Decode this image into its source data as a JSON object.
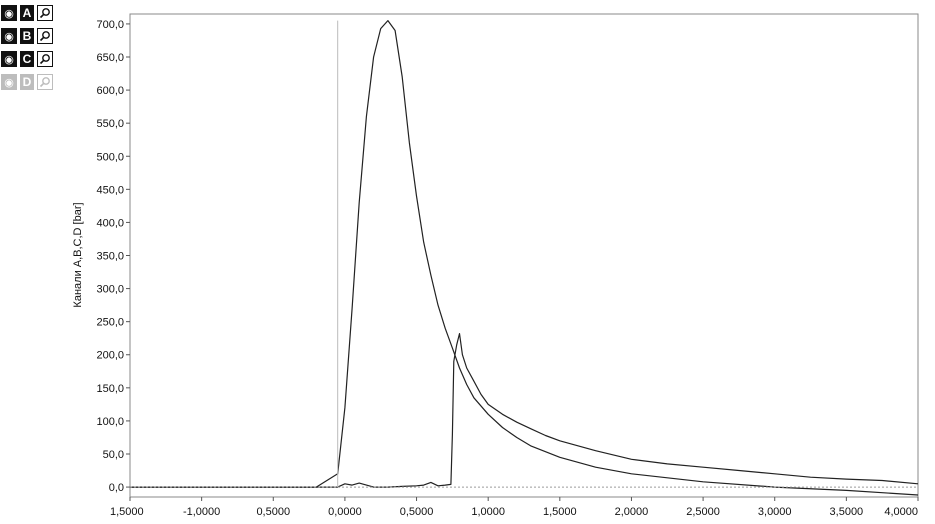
{
  "channels": [
    {
      "letter": "A",
      "icon": "eye-icon",
      "zoom_icon": "magnifier-icon",
      "active": true
    },
    {
      "letter": "B",
      "icon": "eye-icon",
      "zoom_icon": "magnifier-icon",
      "active": true
    },
    {
      "letter": "C",
      "icon": "eye-icon",
      "zoom_icon": "magnifier-icon",
      "active": true
    },
    {
      "letter": "D",
      "icon": "eye-icon",
      "zoom_icon": "magnifier-icon",
      "active": false
    }
  ],
  "chart_data": {
    "type": "line",
    "title": "",
    "xlabel": "",
    "ylabel": "Канали A,B,C,D [bar]",
    "xlim": [
      -1.5,
      4.0
    ],
    "ylim": [
      -15,
      715
    ],
    "x_ticks": [
      {
        "value": -1.5,
        "label": "1,5000"
      },
      {
        "value": -1.0,
        "label": "-1,0000"
      },
      {
        "value": -0.5,
        "label": "0,5000"
      },
      {
        "value": 0.0,
        "label": "0,0000"
      },
      {
        "value": 0.5,
        "label": "0,5000"
      },
      {
        "value": 1.0,
        "label": "1,0000"
      },
      {
        "value": 1.5,
        "label": "1,5000"
      },
      {
        "value": 2.0,
        "label": "2,0000"
      },
      {
        "value": 2.5,
        "label": "2,5000"
      },
      {
        "value": 3.0,
        "label": "3,0000"
      },
      {
        "value": 3.5,
        "label": "3,5000"
      },
      {
        "value": 4.0,
        "label": "4,0000"
      }
    ],
    "y_ticks": [
      {
        "value": 0,
        "label": "0,0"
      },
      {
        "value": 50,
        "label": "50,0"
      },
      {
        "value": 100,
        "label": "100,0"
      },
      {
        "value": 150,
        "label": "150,0"
      },
      {
        "value": 200,
        "label": "200,0"
      },
      {
        "value": 250,
        "label": "250,0"
      },
      {
        "value": 300,
        "label": "300,0"
      },
      {
        "value": 350,
        "label": "350,0"
      },
      {
        "value": 400,
        "label": "400,0"
      },
      {
        "value": 450,
        "label": "450,0"
      },
      {
        "value": 500,
        "label": "500,0"
      },
      {
        "value": 550,
        "label": "550,0"
      },
      {
        "value": 600,
        "label": "600,0"
      },
      {
        "value": 650,
        "label": "650,0"
      },
      {
        "value": 700,
        "label": "700,0"
      }
    ],
    "grid": false,
    "series": [
      {
        "color": "#222222",
        "x": [
          -1.5,
          -0.2,
          -0.05,
          0.0,
          0.05,
          0.1,
          0.15,
          0.2,
          0.25,
          0.3,
          0.35,
          0.4,
          0.45,
          0.5,
          0.55,
          0.6,
          0.65,
          0.7,
          0.75,
          0.8,
          0.85,
          0.9,
          1.0,
          1.1,
          1.2,
          1.3,
          1.5,
          1.75,
          2.0,
          2.5,
          3.0,
          3.5,
          4.0
        ],
        "y": [
          0,
          0,
          20,
          120,
          270,
          430,
          560,
          650,
          693,
          705,
          690,
          620,
          520,
          440,
          370,
          320,
          275,
          240,
          210,
          180,
          155,
          135,
          110,
          90,
          75,
          62,
          45,
          30,
          20,
          8,
          0,
          -5,
          -12
        ]
      },
      {
        "color": "#222222",
        "x": [
          -1.5,
          -0.05,
          0.0,
          0.05,
          0.1,
          0.2,
          0.3,
          0.4,
          0.5,
          0.55,
          0.6,
          0.65,
          0.7,
          0.74,
          0.75,
          0.76,
          0.78,
          0.8,
          0.82,
          0.85,
          0.9,
          0.95,
          1.0,
          1.1,
          1.2,
          1.3,
          1.4,
          1.5,
          1.75,
          2.0,
          2.25,
          2.5,
          2.75,
          3.0,
          3.25,
          3.5,
          3.75,
          4.0
        ],
        "y": [
          0,
          0,
          5,
          3,
          6,
          0,
          0,
          1,
          2,
          3,
          7,
          2,
          3,
          4,
          80,
          190,
          215,
          232,
          200,
          180,
          160,
          140,
          125,
          110,
          98,
          88,
          78,
          70,
          55,
          42,
          35,
          30,
          25,
          20,
          15,
          12,
          10,
          5
        ]
      },
      {
        "color": "#9a9a9a",
        "x": [
          -1.5,
          4.0
        ],
        "y": [
          0,
          0
        ]
      },
      {
        "color": "#bbbbbb",
        "x": [
          -0.05,
          -0.05
        ],
        "y": [
          0,
          705
        ]
      }
    ]
  }
}
